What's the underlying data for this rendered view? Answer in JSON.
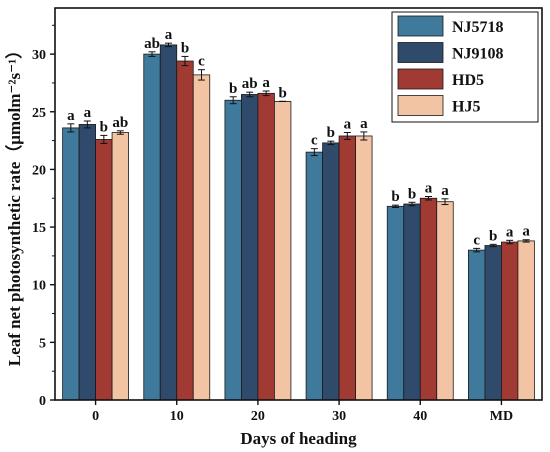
{
  "chart_data": {
    "type": "bar",
    "xlabel": "Days of heading",
    "ylabel": "Leaf net photosynthetic rate（μmolm⁻²s⁻¹）",
    "categories": [
      "0",
      "10",
      "20",
      "30",
      "40",
      "MD"
    ],
    "ylim": [
      0,
      34
    ],
    "yticks": [
      0,
      5,
      10,
      15,
      20,
      25,
      30
    ],
    "grid": false,
    "legend_position": "top-right",
    "series": [
      {
        "name": "NJ5718",
        "color": "#3f7a9d",
        "values": [
          23.6,
          30.0,
          26.0,
          21.5,
          16.8,
          13.0
        ],
        "errors": [
          0.35,
          0.2,
          0.3,
          0.3,
          0.1,
          0.15
        ],
        "letters": [
          "a",
          "ab",
          "b",
          "c",
          "b",
          "c"
        ]
      },
      {
        "name": "NJ9108",
        "color": "#2f4a6b",
        "values": [
          23.9,
          30.8,
          26.5,
          22.3,
          17.0,
          13.4
        ],
        "errors": [
          0.3,
          0.15,
          0.2,
          0.15,
          0.15,
          0.1
        ],
        "letters": [
          "a",
          "a",
          "ab",
          "b",
          "b",
          "b"
        ]
      },
      {
        "name": "HD5",
        "color": "#a13a33",
        "values": [
          22.6,
          29.4,
          26.6,
          22.9,
          17.5,
          13.7
        ],
        "errors": [
          0.35,
          0.4,
          0.2,
          0.3,
          0.15,
          0.15
        ],
        "letters": [
          "b",
          "b",
          "a",
          "a",
          "a",
          "a"
        ]
      },
      {
        "name": "HJ5",
        "color": "#f2c4a3",
        "values": [
          23.2,
          28.2,
          25.9,
          22.9,
          17.2,
          13.8
        ],
        "errors": [
          0.15,
          0.45,
          0.0,
          0.35,
          0.25,
          0.1
        ],
        "letters": [
          "ab",
          "c",
          "b",
          "a",
          "a",
          "a"
        ]
      }
    ]
  }
}
